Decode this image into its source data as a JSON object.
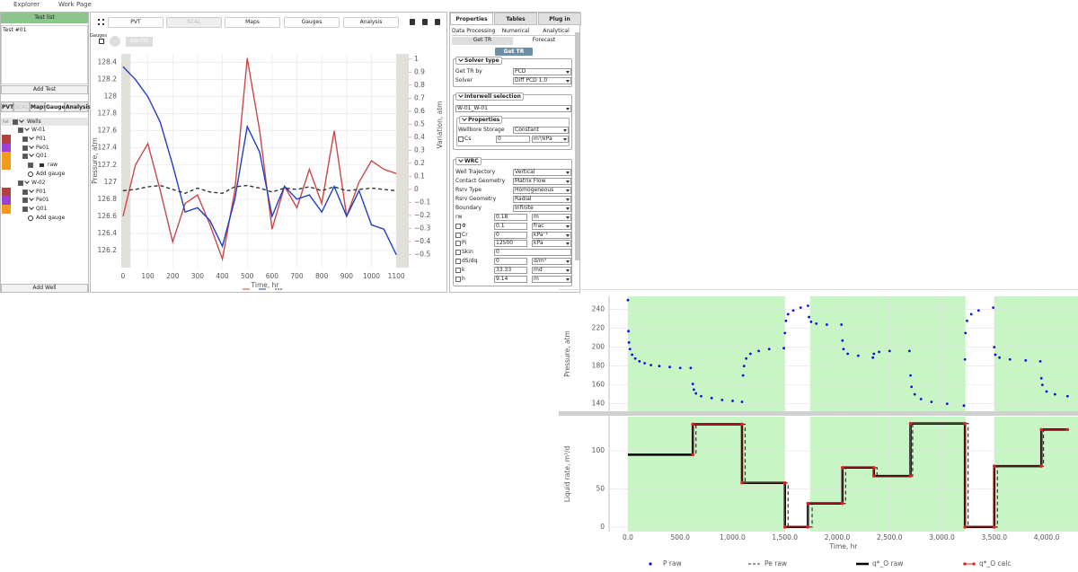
{
  "menu": [
    "Explorer",
    "Work Page"
  ],
  "left_panel": {
    "title": "Test list",
    "tests": [
      "Test #01"
    ],
    "add_test": "Add Test",
    "tabs": [
      "PVT",
      "SCAL",
      "Maps",
      "Gauges",
      "Analysis"
    ],
    "active_tab": 3,
    "disabled_tabs": [
      1
    ],
    "tree": {
      "ref": "Ref",
      "root": "Wells",
      "rows": [
        {
          "label": "W-01"
        },
        {
          "label": "P01",
          "color": "#b5403f"
        },
        {
          "label": "Pe01",
          "color": "#9b3fd5"
        },
        {
          "label": "Q01",
          "color": "#f39a1e"
        },
        {
          "label": "raw",
          "color": "#f39a1e"
        },
        {
          "label": "Add gauge"
        },
        {
          "label": "W-02"
        },
        {
          "label": "P01",
          "color": "#b5403f"
        },
        {
          "label": "Pe01",
          "color": "#9b3fd5"
        },
        {
          "label": "Q01",
          "color": "#f39a1e"
        },
        {
          "label": "Add gauge"
        }
      ]
    },
    "add_well": "Add Well"
  },
  "toolbar": {
    "tabs": [
      "PVT",
      "SCAL",
      "Maps",
      "Gauges",
      "Analysis"
    ],
    "disabled_tabs": [
      1
    ],
    "gauges_label": "Gauges",
    "add_pta": "Add PTA"
  },
  "right_panel": {
    "tabs": [
      "Properties",
      "Tables",
      "Plug in"
    ],
    "subtabs": [
      "Data Processing",
      "Numerical",
      "Analytical"
    ],
    "modes": [
      "Get TR",
      "Forecast"
    ],
    "button": "Get TR",
    "solver": {
      "title": "Solver type",
      "rows": [
        {
          "label": "Get TR by",
          "value": "PCD"
        },
        {
          "label": "Solver",
          "value": "Diff PCD 1.0"
        }
      ]
    },
    "interwell": {
      "title": "Interwell selection",
      "value": "W-01_W-01",
      "properties": {
        "title": "Properties",
        "rows": [
          {
            "label": "Wellbore Storage",
            "value": "Constant"
          }
        ],
        "params": [
          {
            "label": "Cs",
            "value": "0",
            "unit": "m³/kPa",
            "checkbox": true
          }
        ]
      }
    },
    "wrc": {
      "title": "WRC",
      "rows": [
        {
          "label": "Well Trajectory",
          "value": "Vertical"
        },
        {
          "label": "Contact Geometry",
          "value": "Matrix Flow"
        },
        {
          "label": "Rsrv Type",
          "value": "Homogeneous"
        },
        {
          "label": "Rsrv Geometry",
          "value": "Radial"
        },
        {
          "label": "Boundary",
          "value": "Infinite"
        }
      ],
      "params": [
        {
          "label": "rw",
          "value": "0.18",
          "unit": "m",
          "checkbox": false
        },
        {
          "label": "Φ",
          "value": "0.1",
          "unit": "frac",
          "checkbox": true
        },
        {
          "label": "Cr",
          "value": "0",
          "unit": "kPa⁻¹",
          "checkbox": true
        },
        {
          "label": "Pi",
          "value": "12500",
          "unit": "kPa",
          "checkbox": true
        },
        {
          "label": "Skin",
          "value": "0",
          "checkbox": true
        },
        {
          "label": "dS/dq",
          "value": "0",
          "unit": "d/m³",
          "checkbox": true
        },
        {
          "label": "k",
          "value": "33.33",
          "unit": "md",
          "checkbox": true
        },
        {
          "label": "h",
          "value": "9.14",
          "unit": "m",
          "checkbox": true
        }
      ]
    }
  },
  "chart_data": [
    {
      "type": "line",
      "x_label": "Time, hr",
      "y_label": "Pressure, atm",
      "y2_label": "Variation, atm",
      "xlim": [
        -7,
        1150
      ],
      "xticks": [
        0,
        100,
        200,
        300,
        400,
        500,
        600,
        700,
        800,
        900,
        1000,
        1100
      ],
      "ylim": [
        126.0,
        128.5
      ],
      "yticks": [
        126.2,
        126.4,
        126.6,
        126.8,
        127,
        127.2,
        127.4,
        127.6,
        127.8,
        128,
        128.2,
        128.4
      ],
      "y2lim": [
        -0.6,
        1.04
      ],
      "y2ticks": [
        {
          "value": -0.5,
          "label": "−0.5"
        },
        {
          "value": -0.4,
          "label": "−0.4"
        },
        {
          "value": -0.3,
          "label": "−0.3"
        },
        {
          "value": -0.2,
          "label": "−0.2"
        },
        {
          "value": -0.1,
          "label": "−0.1"
        },
        0,
        0.1,
        0.2,
        0.3,
        0.4,
        0.5,
        0.6,
        0.7,
        0.8,
        0.9,
        1
      ],
      "grid": true,
      "shaded_ranges": [
        [
          -7,
          30
        ],
        [
          1100,
          1150
        ]
      ],
      "shade_color": "#e2dfda",
      "x": [
        0,
        50,
        100,
        150,
        200,
        250,
        300,
        350,
        400,
        450,
        500,
        550,
        600,
        650,
        700,
        750,
        800,
        850,
        900,
        950,
        1000,
        1050,
        1100
      ],
      "series": [
        {
          "color": "#c9484a",
          "axis": "y",
          "values": [
            126.6,
            127.2,
            127.45,
            126.9,
            126.3,
            126.75,
            126.85,
            126.5,
            126.1,
            126.9,
            128.45,
            127.6,
            126.45,
            126.95,
            126.7,
            127.15,
            126.75,
            127.6,
            126.6,
            127.0,
            127.25,
            127.15,
            127.1
          ]
        },
        {
          "color": "#2040c0",
          "axis": "y",
          "values": [
            128.35,
            128.2,
            128.0,
            127.7,
            127.2,
            126.65,
            126.7,
            126.55,
            126.25,
            126.8,
            127.65,
            127.35,
            126.6,
            126.95,
            126.8,
            126.85,
            126.65,
            126.95,
            126.6,
            126.9,
            126.5,
            126.45,
            126.15
          ]
        },
        {
          "color": "#333333",
          "axis": "y2",
          "dash": true,
          "values": [
            -0.01,
            0,
            0.02,
            0.03,
            0,
            -0.03,
            0.01,
            -0.02,
            -0.03,
            0.02,
            0.03,
            0.01,
            -0.02,
            0.01,
            0,
            0.02,
            -0.01,
            0.02,
            -0.01,
            0,
            0.01,
            0,
            -0.01
          ]
        }
      ]
    },
    {
      "type": "scatter",
      "y_label": "Pressure, atm",
      "xlim": [
        -180,
        4300
      ],
      "ylim": [
        132,
        254
      ],
      "yticks": [
        140,
        160,
        180,
        200,
        220,
        240
      ],
      "grid": true,
      "shaded_ranges": [
        [
          0,
          1500
        ],
        [
          1740,
          3225
        ],
        [
          3500,
          4300
        ]
      ],
      "shade_color": "#c8f5c4",
      "series": [
        {
          "name": "P raw",
          "color": "#1010e0",
          "x": [
            0,
            5,
            10,
            20,
            40,
            70,
            110,
            160,
            220,
            300,
            400,
            500,
            600,
            620,
            630,
            650,
            700,
            800,
            900,
            1000,
            1090,
            1100,
            1110,
            1130,
            1170,
            1250,
            1350,
            1490,
            1500,
            1510,
            1530,
            1580,
            1650,
            1720,
            1730,
            1750,
            1800,
            1900,
            2040,
            2050,
            2060,
            2100,
            2200,
            2340,
            2350,
            2400,
            2500,
            2690,
            2700,
            2710,
            2740,
            2800,
            2900,
            3050,
            3210,
            3220,
            3225,
            3240,
            3280,
            3350,
            3490,
            3500,
            3510,
            3550,
            3650,
            3800,
            3940,
            3950,
            3960,
            4000,
            4080,
            4200
          ],
          "values": [
            250,
            217,
            205,
            198,
            192,
            188,
            185,
            183,
            181,
            180,
            179,
            178,
            178,
            161,
            155,
            151,
            148,
            146,
            144,
            143,
            142,
            170,
            180,
            188,
            193,
            196,
            198,
            199,
            215,
            228,
            235,
            239,
            242,
            244,
            232,
            227,
            225,
            224,
            224,
            207,
            198,
            193,
            191,
            189,
            193,
            195,
            196,
            196,
            170,
            158,
            150,
            145,
            142,
            140,
            138,
            187,
            215,
            228,
            235,
            239,
            242,
            200,
            192,
            189,
            187,
            186,
            185,
            167,
            160,
            153,
            150,
            148
          ]
        }
      ]
    },
    {
      "type": "step",
      "x_label": "Time, hr",
      "y_label": "Liquid rate, m³/d",
      "xlim": [
        -180,
        4300
      ],
      "ylim": [
        -6,
        145
      ],
      "yticks": [
        0,
        50,
        100
      ],
      "xticks": [
        {
          "value": 0,
          "label": "0.0"
        },
        {
          "value": 500,
          "label": "500.0"
        },
        {
          "value": 1000,
          "label": "1,000.0"
        },
        {
          "value": 1500,
          "label": "1,500.0"
        },
        {
          "value": 2000,
          "label": "2,000.0"
        },
        {
          "value": 2500,
          "label": "2,500.0"
        },
        {
          "value": 3000,
          "label": "3,000.0"
        },
        {
          "value": 3500,
          "label": "3,500.0"
        },
        {
          "value": 4000,
          "label": "4,000.0"
        }
      ],
      "grid": true,
      "shaded_ranges": [
        [
          0,
          1500
        ],
        [
          1740,
          3225
        ],
        [
          3500,
          4300
        ]
      ],
      "shade_color": "#c8f5c4",
      "series": [
        {
          "name": "Pe raw",
          "color": "#333333",
          "dash": true,
          "step": true,
          "x": [
            0,
            650,
            1120,
            1530,
            1760,
            2080,
            2380,
            2720,
            3250,
            3530,
            3970,
            4200
          ],
          "values": [
            95,
            135,
            58,
            0,
            31,
            78,
            67,
            136,
            0,
            80,
            128,
            128
          ]
        },
        {
          "name": "q*_O raw",
          "color": "#000000",
          "step": true,
          "width": 2.5,
          "x": [
            0,
            620,
            1090,
            1500,
            1720,
            2050,
            2350,
            2700,
            3220,
            3500,
            3950,
            4200
          ],
          "values": [
            95,
            135,
            58,
            0,
            31,
            78,
            67,
            136,
            0,
            80,
            128,
            128
          ]
        },
        {
          "name": "q*_O calc",
          "color": "#e02020",
          "markers": true,
          "x": [
            620,
            620,
            1090,
            1090,
            1500,
            1500,
            1720,
            1720,
            2050,
            2050,
            2350,
            2350,
            2700,
            2700,
            3220,
            3220,
            3500,
            3500,
            3950,
            3950,
            4200
          ],
          "values": [
            95,
            135,
            135,
            58,
            58,
            0,
            0,
            31,
            31,
            78,
            78,
            67,
            67,
            136,
            136,
            0,
            0,
            80,
            80,
            128,
            128
          ]
        }
      ]
    }
  ]
}
